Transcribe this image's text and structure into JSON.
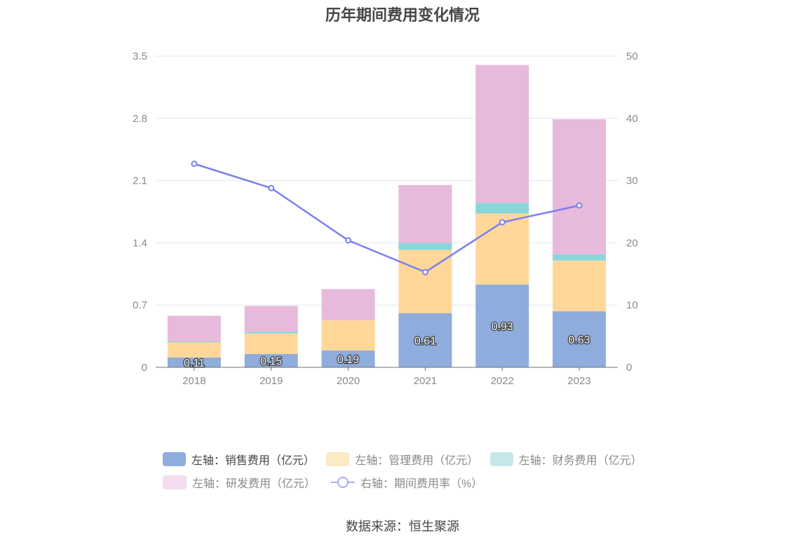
{
  "title": "历年期间费用变化情况",
  "source": "数据来源：恒生聚源",
  "legend": [
    {
      "label": "左轴：销售费用（亿元）",
      "color": "#8eacdc",
      "active": true
    },
    {
      "label": "左轴：管理费用（亿元）",
      "color": "#fce9c6",
      "active": false
    },
    {
      "label": "左轴：财务费用（亿元）",
      "color": "#c4e8ea",
      "active": false
    },
    {
      "label": "左轴：研发费用（亿元）",
      "color": "#f2dcee",
      "active": false
    },
    {
      "label": "右轴：期间费用率（%）",
      "color": "#a9a9f0",
      "active": false
    }
  ],
  "chart_data": {
    "type": "bar",
    "stacked": true,
    "categories": [
      "2018",
      "2019",
      "2020",
      "2021",
      "2022",
      "2023"
    ],
    "y_left": {
      "ticks": [
        "0",
        "0.7",
        "1.4",
        "2.1",
        "2.8",
        "3.5"
      ],
      "ylim": [
        0,
        3.5
      ]
    },
    "y_right": {
      "ticks": [
        "0",
        "10",
        "20",
        "30",
        "40",
        "50"
      ],
      "ylim": [
        0,
        50
      ]
    },
    "grid": true,
    "legend_position": "bottom",
    "series": [
      {
        "name": "左轴：销售费用（亿元）",
        "axis": "left",
        "color": "#8eacdc",
        "values": [
          0.11,
          0.15,
          0.19,
          0.61,
          0.93,
          0.63
        ],
        "labels": [
          "0.11",
          "0.15",
          "0.19",
          "0.61",
          "0.93",
          "0.63"
        ]
      },
      {
        "name": "左轴：管理费用（亿元）",
        "axis": "left",
        "color": "#ffd899",
        "values": [
          0.17,
          0.23,
          0.34,
          0.71,
          0.8,
          0.57
        ]
      },
      {
        "name": "左轴：财务费用（亿元）",
        "axis": "left",
        "color": "#89d6d9",
        "values": [
          0.01,
          0.02,
          0.0,
          0.08,
          0.12,
          0.07
        ]
      },
      {
        "name": "左轴：研发费用（亿元）",
        "axis": "left",
        "color": "#e7b9db",
        "values": [
          0.29,
          0.29,
          0.35,
          0.65,
          1.55,
          1.52
        ]
      },
      {
        "name": "右轴：期间费用率（%）",
        "axis": "right",
        "type": "line",
        "color": "#7b7ff0",
        "values": [
          32.7,
          28.8,
          20.4,
          15.3,
          23.3,
          26.0
        ]
      }
    ]
  }
}
